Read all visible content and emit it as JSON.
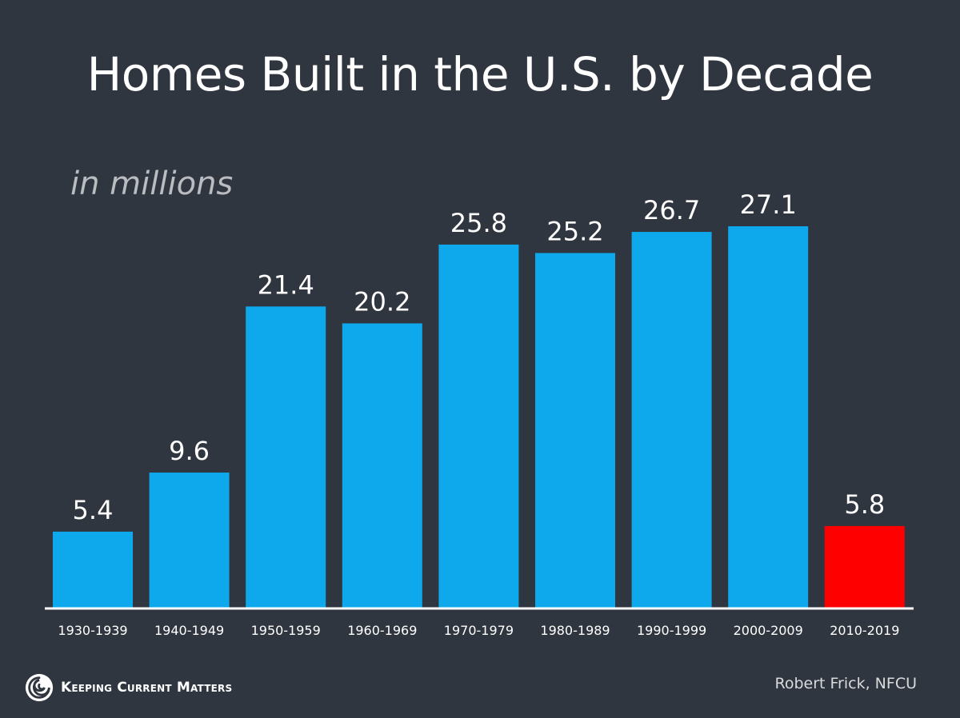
{
  "title": "Homes Built in the U.S. by Decade",
  "subtitle": "in millions",
  "source": "Robert Frick, NFCU",
  "brand": {
    "name": "Keeping Current Matters",
    "icon": "kcm-swirl-icon"
  },
  "colors": {
    "background": "#30363f",
    "bar": "#0ea8ec",
    "highlight_bar": "#ff0000",
    "axis": "#ffffff",
    "text": "#ffffff"
  },
  "chart_data": {
    "type": "bar",
    "title": "Homes Built in the U.S. by Decade",
    "subtitle": "in millions",
    "categories": [
      "1930-1939",
      "1940-1949",
      "1950-1959",
      "1960-1969",
      "1970-1979",
      "1980-1989",
      "1990-1999",
      "2000-2009",
      "2010-2019"
    ],
    "values": [
      5.4,
      9.6,
      21.4,
      20.2,
      25.8,
      25.2,
      26.7,
      27.1,
      5.8
    ],
    "value_labels": [
      "5.4",
      "9.6",
      "21.4",
      "20.2",
      "25.8",
      "25.2",
      "26.7",
      "27.1",
      "5.8"
    ],
    "highlighted_category": "2010-2019",
    "ylim": [
      0,
      27.1
    ],
    "xlabel": "",
    "ylabel": "",
    "grid": false,
    "legend": "none"
  }
}
